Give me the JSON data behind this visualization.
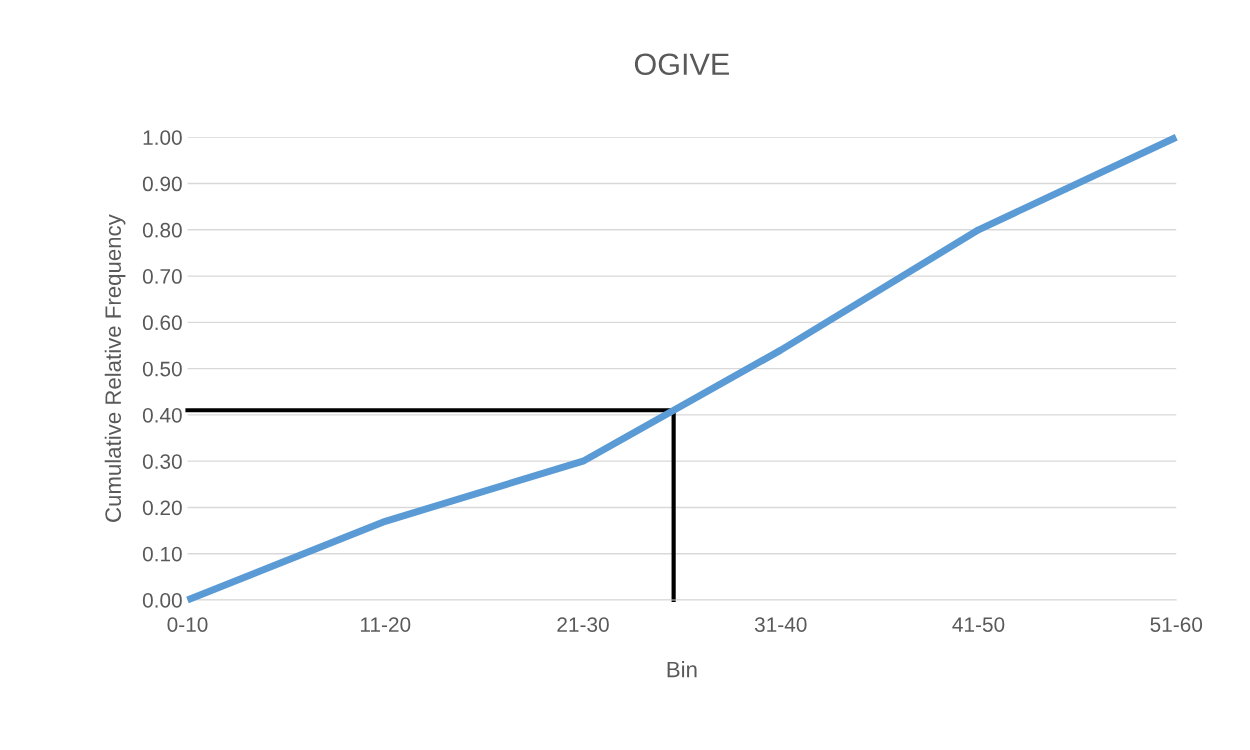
{
  "chart_data": {
    "type": "line",
    "title": "OGIVE",
    "xlabel": "Bin",
    "ylabel": "Cumulative Relative Frequency",
    "categories": [
      "0-10",
      "11-20",
      "21-30",
      "31-40",
      "41-50",
      "51-60"
    ],
    "series": [
      {
        "color": "#5b9bd5",
        "values": [
          0.0,
          0.17,
          0.3,
          0.54,
          0.8,
          1.0
        ]
      }
    ],
    "ref_lines": [
      {
        "axis": "y",
        "value": 0.41,
        "color": "#000000"
      }
    ],
    "ylim": [
      0,
      1
    ],
    "yticks": [
      {
        "value": 0,
        "label": "0.00"
      },
      {
        "value": 0.1,
        "label": "0.10"
      },
      {
        "value": 0.2,
        "label": "0.20"
      },
      {
        "value": 0.3,
        "label": "0.30"
      },
      {
        "value": 0.4,
        "label": "0.40"
      },
      {
        "value": 0.5,
        "label": "0.50"
      },
      {
        "value": 0.6,
        "label": "0.60"
      },
      {
        "value": 0.7,
        "label": "0.70"
      },
      {
        "value": 0.8,
        "label": "0.80"
      },
      {
        "value": 0.9,
        "label": "0.90"
      },
      {
        "value": 1,
        "label": "1.00"
      }
    ],
    "grid": "y",
    "marker": "none",
    "line_style": "solid"
  }
}
